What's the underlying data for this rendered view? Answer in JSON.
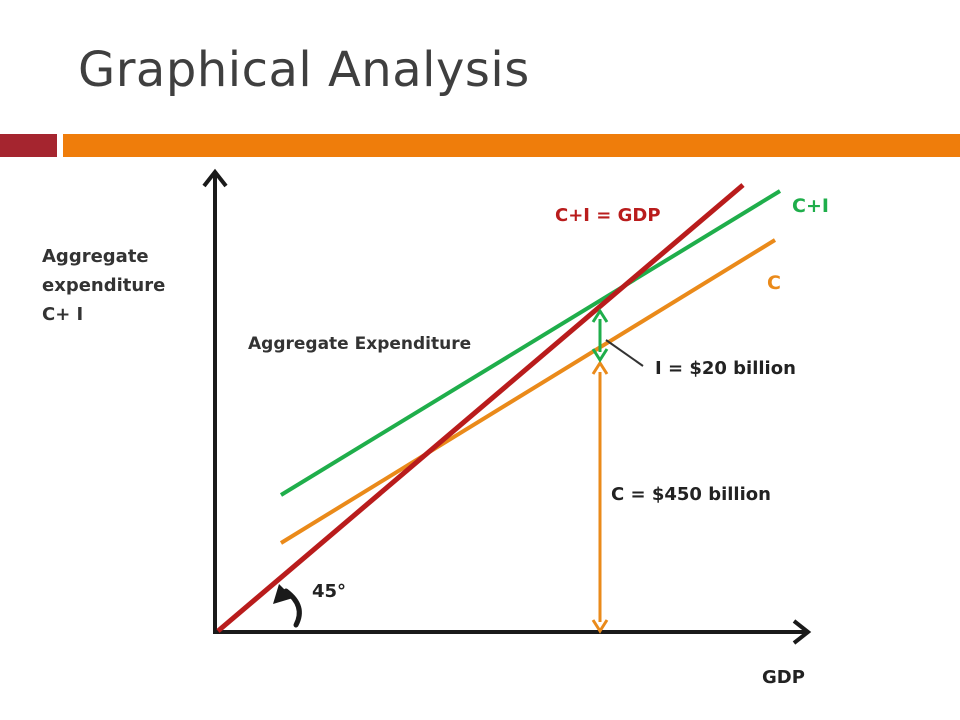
{
  "slide": {
    "title": "Graphical Analysis"
  },
  "colors": {
    "title_text": "#3f3f3f",
    "accent_dark_red": "#a5252f",
    "accent_orange": "#ef7d0b",
    "line_45": "#b91c1c",
    "line_ci": "#1fae4b",
    "line_c": "#ea8a1a",
    "axis": "#1a1a1a"
  },
  "labels": {
    "y_axis": [
      "Aggregate",
      "expenditure",
      "C+ I"
    ],
    "x_axis": "GDP",
    "line_45": "C+I = GDP",
    "line_ci": "C+I",
    "line_c": "C",
    "ae_caption": "Aggregate Expenditure",
    "investment": "I = $20 billion",
    "consumption": "C = $450 billion",
    "angle": "45°",
    "arrow_icon": "curved-arrow-icon"
  }
}
